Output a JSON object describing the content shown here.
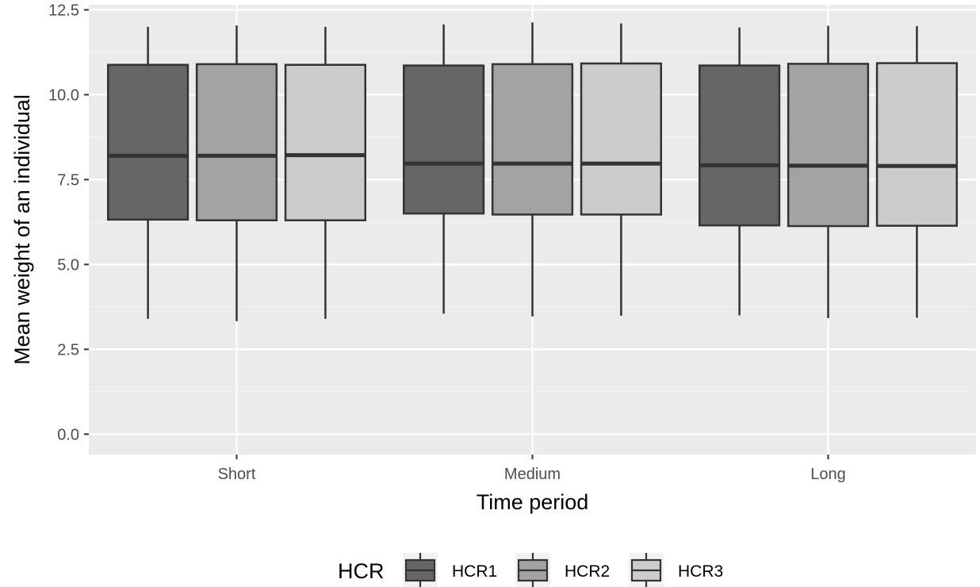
{
  "chart_data": {
    "type": "boxplot",
    "title": "",
    "xlabel": "Time period",
    "ylabel": "Mean weight of an individual",
    "ylim": [
      -0.6,
      12.65
    ],
    "yticks": [
      0.0,
      2.5,
      5.0,
      7.5,
      10.0,
      12.5
    ],
    "ytick_labels": [
      "0.0",
      "2.5",
      "5.0",
      "7.5",
      "10.0",
      "12.5"
    ],
    "categories": [
      "Short",
      "Medium",
      "Long"
    ],
    "grid": true,
    "legend": {
      "title": "HCR",
      "position": "bottom"
    },
    "series": [
      {
        "name": "HCR1",
        "color": "#666666",
        "boxes": [
          {
            "min": 3.4,
            "q1": 6.32,
            "median": 8.2,
            "q3": 10.88,
            "max": 12.0
          },
          {
            "min": 3.55,
            "q1": 6.5,
            "median": 7.97,
            "q3": 10.86,
            "max": 12.07
          },
          {
            "min": 3.5,
            "q1": 6.15,
            "median": 7.92,
            "q3": 10.86,
            "max": 11.98
          }
        ]
      },
      {
        "name": "HCR2",
        "color": "#a3a3a3",
        "boxes": [
          {
            "min": 3.33,
            "q1": 6.3,
            "median": 8.2,
            "q3": 10.9,
            "max": 12.04
          },
          {
            "min": 3.47,
            "q1": 6.47,
            "median": 7.97,
            "q3": 10.9,
            "max": 12.13
          },
          {
            "min": 3.42,
            "q1": 6.13,
            "median": 7.91,
            "q3": 10.91,
            "max": 12.03
          }
        ]
      },
      {
        "name": "HCR3",
        "color": "#cccccc",
        "boxes": [
          {
            "min": 3.4,
            "q1": 6.3,
            "median": 8.22,
            "q3": 10.88,
            "max": 12.0
          },
          {
            "min": 3.49,
            "q1": 6.47,
            "median": 7.97,
            "q3": 10.92,
            "max": 12.1
          },
          {
            "min": 3.43,
            "q1": 6.14,
            "median": 7.9,
            "q3": 10.93,
            "max": 12.02
          }
        ]
      }
    ]
  },
  "colors": {
    "panel_background": "#ebebeb",
    "grid_major": "#ffffff",
    "grid_minor": "#f5f5f5",
    "box_outline": "#333333",
    "tick_color": "#333333"
  }
}
